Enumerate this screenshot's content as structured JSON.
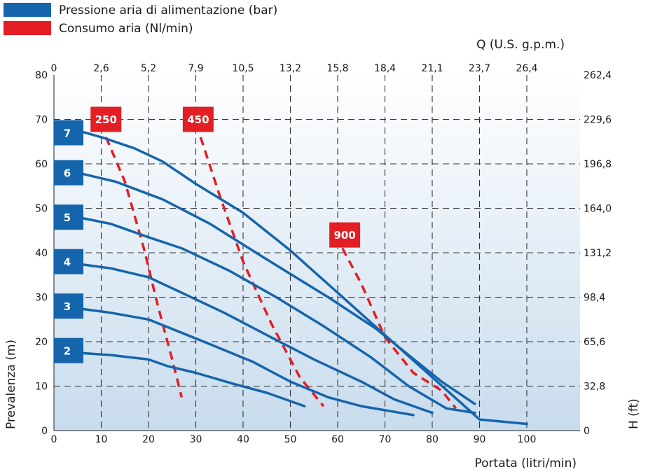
{
  "legend": [
    {
      "label": "Pressione aria di alimentazione (bar)",
      "color": "#1565ad"
    },
    {
      "label": "Consumo aria (Nl/min)",
      "color": "#e31e24"
    }
  ],
  "chart_data": {
    "type": "line",
    "xlabel": "Portata (litri/min)",
    "ylabel": "Prevalenza (m)",
    "x2label": "Q (U.S. g.p.m.)",
    "y2label": "H (ft)",
    "xlim": [
      0,
      110
    ],
    "ylim": [
      0,
      80
    ],
    "x_ticks": [
      0,
      10,
      20,
      30,
      40,
      50,
      60,
      70,
      80,
      90,
      100
    ],
    "y_ticks": [
      0,
      10,
      20,
      30,
      40,
      50,
      60,
      70,
      80
    ],
    "x2_ticks": [
      {
        "x": 0,
        "label": "0"
      },
      {
        "x": 10,
        "label": "2,6"
      },
      {
        "x": 20,
        "label": "5,2"
      },
      {
        "x": 30,
        "label": "7,9"
      },
      {
        "x": 40,
        "label": "10,5"
      },
      {
        "x": 50,
        "label": "13,2"
      },
      {
        "x": 60,
        "label": "15,8"
      },
      {
        "x": 70,
        "label": "18,4"
      },
      {
        "x": 80,
        "label": "21,1"
      },
      {
        "x": 90,
        "label": "23,7"
      },
      {
        "x": 100,
        "label": "26,4"
      }
    ],
    "y2_ticks": [
      {
        "y": 0,
        "label": "0"
      },
      {
        "y": 10,
        "label": "32,8"
      },
      {
        "y": 20,
        "label": "65,6"
      },
      {
        "y": 30,
        "label": "98,4"
      },
      {
        "y": 40,
        "label": "131,2"
      },
      {
        "y": 50,
        "label": "164,0"
      },
      {
        "y": 60,
        "label": "196,8"
      },
      {
        "y": 70,
        "label": "229,6"
      },
      {
        "y": 80,
        "label": "262,4"
      }
    ],
    "grid": true,
    "pressure_series": [
      {
        "name": "7",
        "label_y": 67,
        "color": "#1565ad",
        "points": [
          [
            5,
            67.5
          ],
          [
            10,
            66
          ],
          [
            17,
            63.5
          ],
          [
            23,
            60.5
          ],
          [
            30,
            55.5
          ],
          [
            40,
            49
          ],
          [
            50,
            40.5
          ],
          [
            60,
            31
          ],
          [
            70,
            21.5
          ],
          [
            80,
            12
          ],
          [
            90,
            2.5
          ],
          [
            100,
            1.5
          ]
        ]
      },
      {
        "name": "6",
        "label_y": 58,
        "color": "#1565ad",
        "points": [
          [
            5,
            58
          ],
          [
            13,
            56
          ],
          [
            23,
            52
          ],
          [
            33,
            46.5
          ],
          [
            45,
            38.5
          ],
          [
            58,
            30
          ],
          [
            68,
            23
          ],
          [
            75,
            17
          ],
          [
            82,
            11
          ],
          [
            89,
            6
          ]
        ]
      },
      {
        "name": "5",
        "label_y": 48,
        "color": "#1565ad",
        "points": [
          [
            5,
            48
          ],
          [
            12,
            46.5
          ],
          [
            20,
            43.5
          ],
          [
            27,
            41
          ],
          [
            37,
            36
          ],
          [
            47,
            30
          ],
          [
            57,
            23.5
          ],
          [
            67,
            16.5
          ],
          [
            75,
            10
          ],
          [
            83,
            5
          ],
          [
            89,
            4
          ]
        ]
      },
      {
        "name": "4",
        "label_y": 38,
        "color": "#1565ad",
        "points": [
          [
            5,
            37.5
          ],
          [
            12,
            36.5
          ],
          [
            20,
            34.5
          ],
          [
            27,
            31
          ],
          [
            36,
            26.5
          ],
          [
            45,
            21.5
          ],
          [
            55,
            16
          ],
          [
            65,
            11
          ],
          [
            72,
            7
          ],
          [
            80,
            4
          ]
        ]
      },
      {
        "name": "3",
        "label_y": 28,
        "color": "#1565ad",
        "points": [
          [
            5,
            27.5
          ],
          [
            12,
            26.5
          ],
          [
            20,
            25
          ],
          [
            27,
            22
          ],
          [
            34,
            19
          ],
          [
            42,
            15.5
          ],
          [
            50,
            11
          ],
          [
            58,
            7.5
          ],
          [
            65,
            5.5
          ],
          [
            76,
            3.5
          ]
        ]
      },
      {
        "name": "2",
        "label_y": 18,
        "color": "#1565ad",
        "points": [
          [
            5,
            17.5
          ],
          [
            12,
            17
          ],
          [
            20,
            16
          ],
          [
            24,
            14.5
          ],
          [
            30,
            13
          ],
          [
            38,
            10.5
          ],
          [
            45,
            8.5
          ],
          [
            53,
            5.5
          ]
        ]
      }
    ],
    "air_series": [
      {
        "name": "250",
        "color": "#e31e24",
        "label_x": 11,
        "label_y": 70,
        "points": [
          [
            11,
            66
          ],
          [
            15,
            56
          ],
          [
            19,
            41
          ],
          [
            22,
            28
          ],
          [
            25,
            16
          ],
          [
            27,
            7.5
          ]
        ]
      },
      {
        "name": "450",
        "color": "#e31e24",
        "label_x": 30.5,
        "label_y": 70,
        "points": [
          [
            31,
            66
          ],
          [
            35,
            53
          ],
          [
            40,
            38
          ],
          [
            46,
            24
          ],
          [
            52,
            12
          ],
          [
            57,
            5.5
          ]
        ]
      },
      {
        "name": "900",
        "color": "#e31e24",
        "label_x": 61.5,
        "label_y": 44,
        "points": [
          [
            61,
            41
          ],
          [
            65,
            33
          ],
          [
            70,
            21
          ],
          [
            76,
            13
          ],
          [
            82,
            9
          ],
          [
            85,
            5
          ]
        ]
      }
    ]
  }
}
